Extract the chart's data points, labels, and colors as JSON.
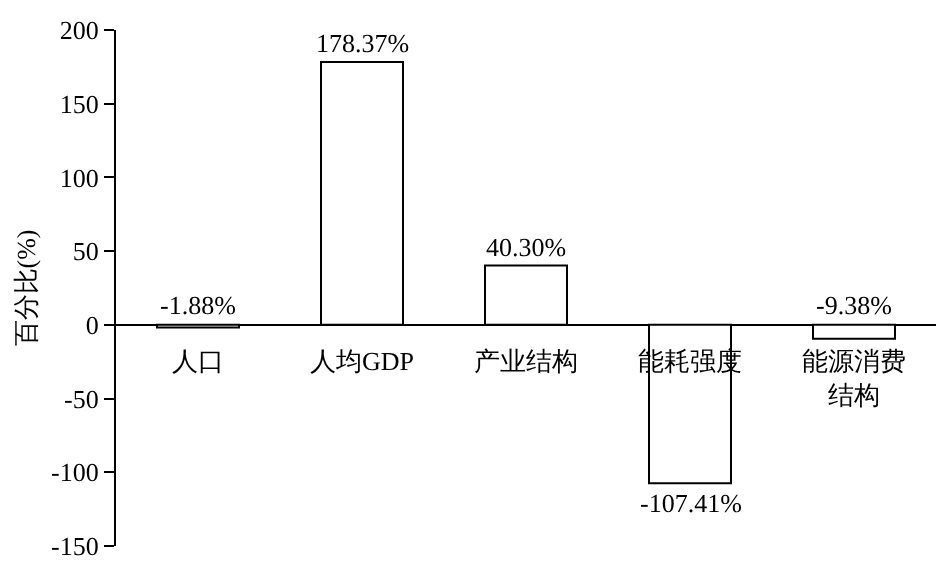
{
  "chart_data": {
    "type": "bar",
    "ylabel": "百分比(%)",
    "categories": [
      "人口",
      "人均GDP",
      "产业结构",
      "能耗强度",
      "能源消费结构"
    ],
    "values": [
      -1.88,
      178.37,
      40.3,
      -107.41,
      -9.38
    ],
    "value_labels": [
      "-1.88%",
      "178.37%",
      "40.30%",
      "-107.41%",
      "-9.38%"
    ],
    "color": "#ffffff",
    "ylim": [
      -150,
      200
    ],
    "yticks": [
      -150,
      -100,
      -50,
      0,
      50,
      100,
      150,
      200
    ],
    "tick_labels": "y",
    "legend": false
  }
}
